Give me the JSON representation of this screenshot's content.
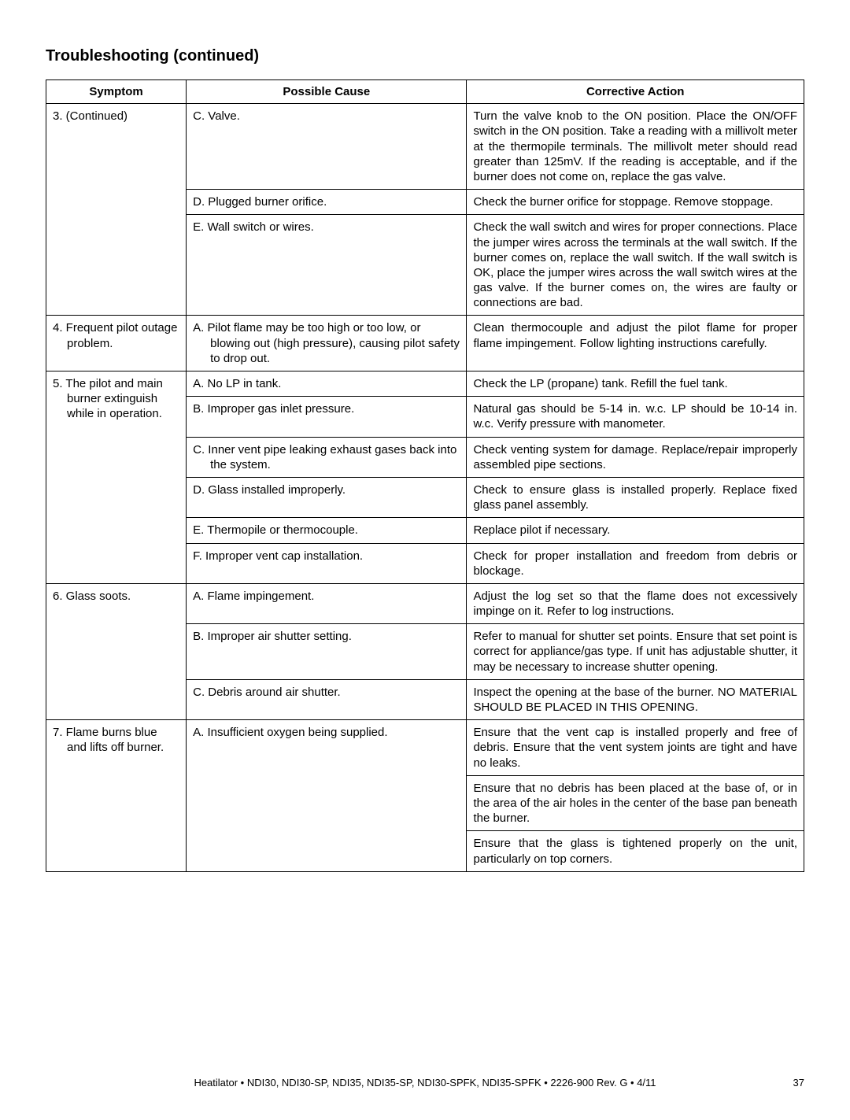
{
  "title": "Troubleshooting (continued)",
  "columns": [
    "Symptom",
    "Possible Cause",
    "Corrective Action"
  ],
  "footer": {
    "text": "Heatilator  •  NDI30, NDI30-SP, NDI35, NDI35-SP, NDI30-SPFK, NDI35-SPFK  •  2226-900  Rev. G  •  4/11",
    "page": "37"
  },
  "rows": [
    {
      "symptom": "3. (Continued)",
      "cause": "C.  Valve.",
      "action": "Turn the valve knob to the ON position. Place the ON/OFF switch in the ON position. Take a reading with a millivolt meter at the thermopile terminals. The millivolt meter should read greater than 125mV. If the reading is acceptable, and if the burner does not come on, replace the gas valve.",
      "symptom_rowspan": 3
    },
    {
      "cause": "D. Plugged burner orifice.",
      "action": "Check the burner orifice for stoppage. Remove stoppage."
    },
    {
      "cause": "E. Wall switch or wires.",
      "action": "Check the wall switch and wires for proper connections. Place the jumper wires across the terminals at the wall switch. If the burner comes on, replace the wall switch. If the wall switch is OK, place the jumper wires across the wall switch wires at the gas valve. If the burner comes on, the wires are faulty or connections are bad."
    },
    {
      "symptom": "4. Frequent pilot outage problem.",
      "cause": "A.  Pilot flame may be too high or too low, or blowing out (high pressure), causing pilot safety to drop out.",
      "action": "Clean thermocouple and adjust the pilot flame for proper flame impingement. Follow lighting instructions carefully.",
      "symptom_rowspan": 1,
      "hanging_symptom": true
    },
    {
      "symptom": "5. The pilot and main burner extinguish while in operation.",
      "cause": "A.  No LP in tank.",
      "action": "Check the LP (propane) tank. Refill the fuel tank.",
      "symptom_rowspan": 6,
      "hanging_symptom": true
    },
    {
      "cause": "B.  Improper gas inlet pressure.",
      "action": "Natural gas should be 5-14 in. w.c.  LP should be 10-14 in. w.c.  Verify pressure with manometer."
    },
    {
      "cause": "C.  Inner vent pipe leaking exhaust gases back into the system.",
      "action": "Check venting system for damage. Replace/repair improperly assembled pipe sections."
    },
    {
      "cause": "D. Glass installed improperly.",
      "action": "Check to ensure glass is installed properly.  Replace fixed glass panel assembly."
    },
    {
      "cause": "E. Thermopile or thermocouple.",
      "action": "Replace pilot if necessary."
    },
    {
      "cause": "F. Improper vent cap installation.",
      "action": "Check for proper installation and freedom from debris or blockage."
    },
    {
      "symptom": "6. Glass soots.",
      "cause": "A. Flame impingement.",
      "action": "Adjust the log set so that the flame does not excessively impinge on it. Refer to log instructions.",
      "symptom_rowspan": 3
    },
    {
      "cause": "B. Improper air shutter setting.",
      "action": "Refer to manual for shutter set points.  Ensure that set point is correct for appliance/gas type.  If unit has adjustable shutter, it may be necessary to increase shutter opening."
    },
    {
      "cause": "C. Debris around air shutter.",
      "action": "Inspect the opening at the base of the burner. NO MATERIAL SHOULD BE PLACED IN THIS OPENING."
    },
    {
      "symptom": "7.  Flame burns blue and lifts off burner.",
      "cause": "A. Insufficient oxygen being supplied.",
      "action": "Ensure that the vent cap is installed properly and free of debris. Ensure that the vent system joints are tight and have no leaks.",
      "symptom_rowspan": 3,
      "cause_rowspan": 3,
      "hanging_symptom": true
    },
    {
      "action": "Ensure that no debris has been placed at the base of, or in the area of the air holes in the center of the base pan beneath the burner."
    },
    {
      "action": "Ensure that the glass is tightened properly on the unit, particularly on top corners."
    }
  ]
}
